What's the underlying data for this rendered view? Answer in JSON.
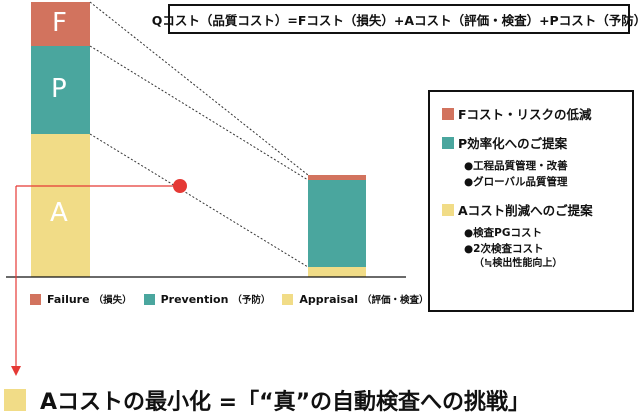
{
  "formula": "Qコスト（品質コスト）=Fコスト（損失）+Aコスト（評価・検査）+Pコスト（予防）",
  "colors": {
    "failure": "#d2735e",
    "prevention": "#4aa69e",
    "appraisal": "#f1dc87",
    "arrow": "#e53935"
  },
  "bars": {
    "left": {
      "labels": {
        "f": "F",
        "p": "P",
        "a": "A"
      }
    }
  },
  "bottom_legend": [
    {
      "label": "Failure",
      "sub": "（損失）"
    },
    {
      "label": "Prevention",
      "sub": "（予防）"
    },
    {
      "label": "Appraisal",
      "sub": "（評価・検査）"
    }
  ],
  "legend": {
    "groups": [
      {
        "title": "Fコスト・リスクの低減",
        "items": [],
        "note": ""
      },
      {
        "title": "P効率化へのご提案",
        "items": [
          "●工程品質管理・改善",
          "●グローバル品質管理"
        ],
        "note": ""
      },
      {
        "title": "Aコスト削減へのご提案",
        "items": [
          "●検査PGコスト",
          "●2次検査コスト"
        ],
        "note": "（≒検出性能向上）"
      }
    ]
  },
  "conclusion": "Aコストの最小化 =「“真”の自動検査への挑戦」"
}
